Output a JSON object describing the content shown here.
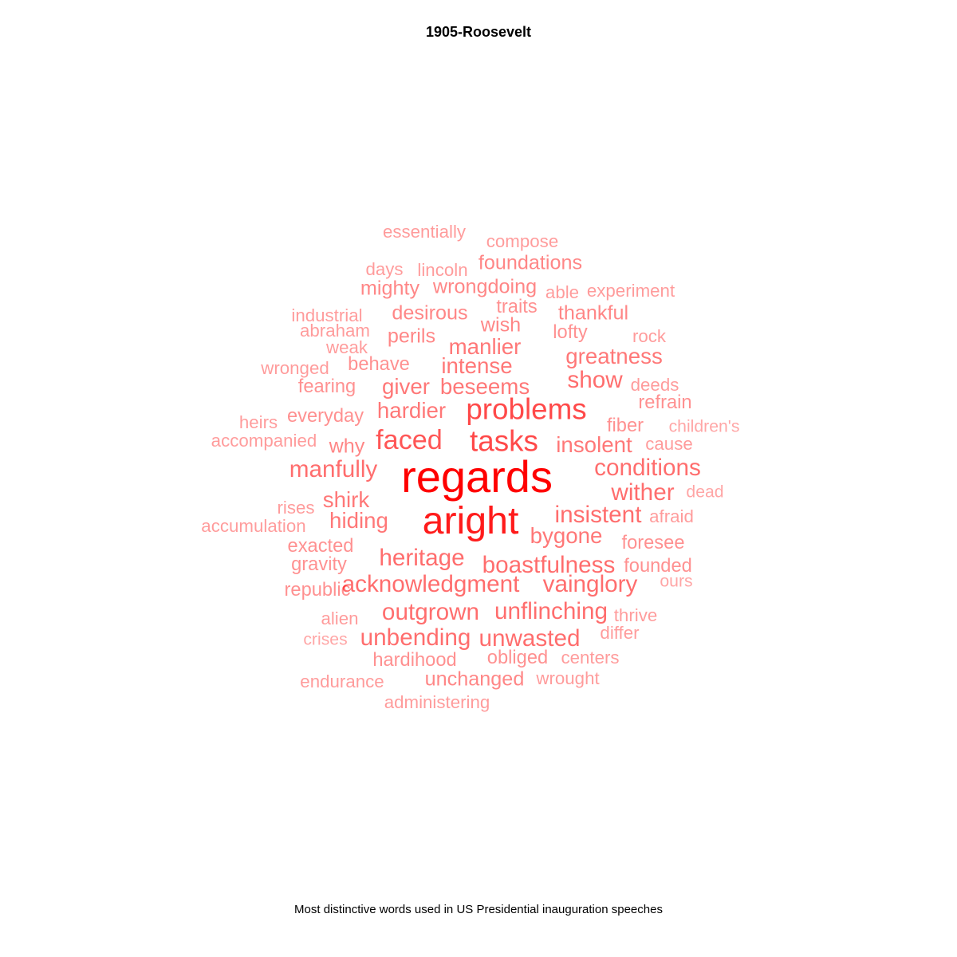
{
  "chart_data": {
    "type": "wordcloud",
    "title": "1905-Roosevelt",
    "caption": "Most distinctive words used in US Presidential inauguration speeches",
    "color": "#ff0000",
    "words": [
      {
        "text": "regards",
        "weight": 1.0
      },
      {
        "text": "aright",
        "weight": 0.86
      },
      {
        "text": "problems",
        "weight": 0.62
      },
      {
        "text": "tasks",
        "weight": 0.62
      },
      {
        "text": "faced",
        "weight": 0.56
      },
      {
        "text": "boastfulness",
        "weight": 0.44
      },
      {
        "text": "acknowledgment",
        "weight": 0.44
      },
      {
        "text": "vainglory",
        "weight": 0.44
      },
      {
        "text": "conditions",
        "weight": 0.44
      },
      {
        "text": "heritage",
        "weight": 0.44
      },
      {
        "text": "insistent",
        "weight": 0.44
      },
      {
        "text": "manfully",
        "weight": 0.44
      },
      {
        "text": "outgrown",
        "weight": 0.44
      },
      {
        "text": "show",
        "weight": 0.44
      },
      {
        "text": "unbending",
        "weight": 0.44
      },
      {
        "text": "unflinching",
        "weight": 0.44
      },
      {
        "text": "unwasted",
        "weight": 0.44
      },
      {
        "text": "wither",
        "weight": 0.44
      },
      {
        "text": "beseems",
        "weight": 0.38
      },
      {
        "text": "bygone",
        "weight": 0.38
      },
      {
        "text": "giver",
        "weight": 0.38
      },
      {
        "text": "greatness",
        "weight": 0.38
      },
      {
        "text": "hardier",
        "weight": 0.38
      },
      {
        "text": "hiding",
        "weight": 0.38
      },
      {
        "text": "insolent",
        "weight": 0.38
      },
      {
        "text": "intense",
        "weight": 0.38
      },
      {
        "text": "manlier",
        "weight": 0.38
      },
      {
        "text": "shirk",
        "weight": 0.38
      },
      {
        "text": "desirous",
        "weight": 0.3
      },
      {
        "text": "foundations",
        "weight": 0.3
      },
      {
        "text": "mighty",
        "weight": 0.3
      },
      {
        "text": "perils",
        "weight": 0.3
      },
      {
        "text": "thankful",
        "weight": 0.3
      },
      {
        "text": "unchanged",
        "weight": 0.3
      },
      {
        "text": "why",
        "weight": 0.3
      },
      {
        "text": "wish",
        "weight": 0.3
      },
      {
        "text": "wrongdoing",
        "weight": 0.3
      },
      {
        "text": "behave",
        "weight": 0.24
      },
      {
        "text": "everyday",
        "weight": 0.24
      },
      {
        "text": "exacted",
        "weight": 0.24
      },
      {
        "text": "fearing",
        "weight": 0.24
      },
      {
        "text": "fiber",
        "weight": 0.24
      },
      {
        "text": "foresee",
        "weight": 0.24
      },
      {
        "text": "founded",
        "weight": 0.24
      },
      {
        "text": "gravity",
        "weight": 0.24
      },
      {
        "text": "hardihood",
        "weight": 0.24
      },
      {
        "text": "lofty",
        "weight": 0.24
      },
      {
        "text": "obliged",
        "weight": 0.24
      },
      {
        "text": "refrain",
        "weight": 0.24
      },
      {
        "text": "republic",
        "weight": 0.24
      },
      {
        "text": "traits",
        "weight": 0.24
      },
      {
        "text": "abraham",
        "weight": 0.18
      },
      {
        "text": "able",
        "weight": 0.18
      },
      {
        "text": "accompanied",
        "weight": 0.18
      },
      {
        "text": "accumulation",
        "weight": 0.18
      },
      {
        "text": "administering",
        "weight": 0.18
      },
      {
        "text": "afraid",
        "weight": 0.18
      },
      {
        "text": "alien",
        "weight": 0.18
      },
      {
        "text": "cause",
        "weight": 0.18
      },
      {
        "text": "centers",
        "weight": 0.18
      },
      {
        "text": "compose",
        "weight": 0.18
      },
      {
        "text": "days",
        "weight": 0.18
      },
      {
        "text": "deeds",
        "weight": 0.18
      },
      {
        "text": "differ",
        "weight": 0.18
      },
      {
        "text": "endurance",
        "weight": 0.18
      },
      {
        "text": "essentially",
        "weight": 0.18
      },
      {
        "text": "experiment",
        "weight": 0.18
      },
      {
        "text": "heirs",
        "weight": 0.18
      },
      {
        "text": "industrial",
        "weight": 0.18
      },
      {
        "text": "lincoln",
        "weight": 0.18
      },
      {
        "text": "rises",
        "weight": 0.18
      },
      {
        "text": "rock",
        "weight": 0.18
      },
      {
        "text": "thrive",
        "weight": 0.18
      },
      {
        "text": "weak",
        "weight": 0.18
      },
      {
        "text": "wrought",
        "weight": 0.18
      },
      {
        "text": "wronged",
        "weight": 0.18
      },
      {
        "text": "children's",
        "weight": 0.12
      },
      {
        "text": "crises",
        "weight": 0.12
      },
      {
        "text": "dead",
        "weight": 0.12
      },
      {
        "text": "ours",
        "weight": 0.12
      }
    ]
  }
}
